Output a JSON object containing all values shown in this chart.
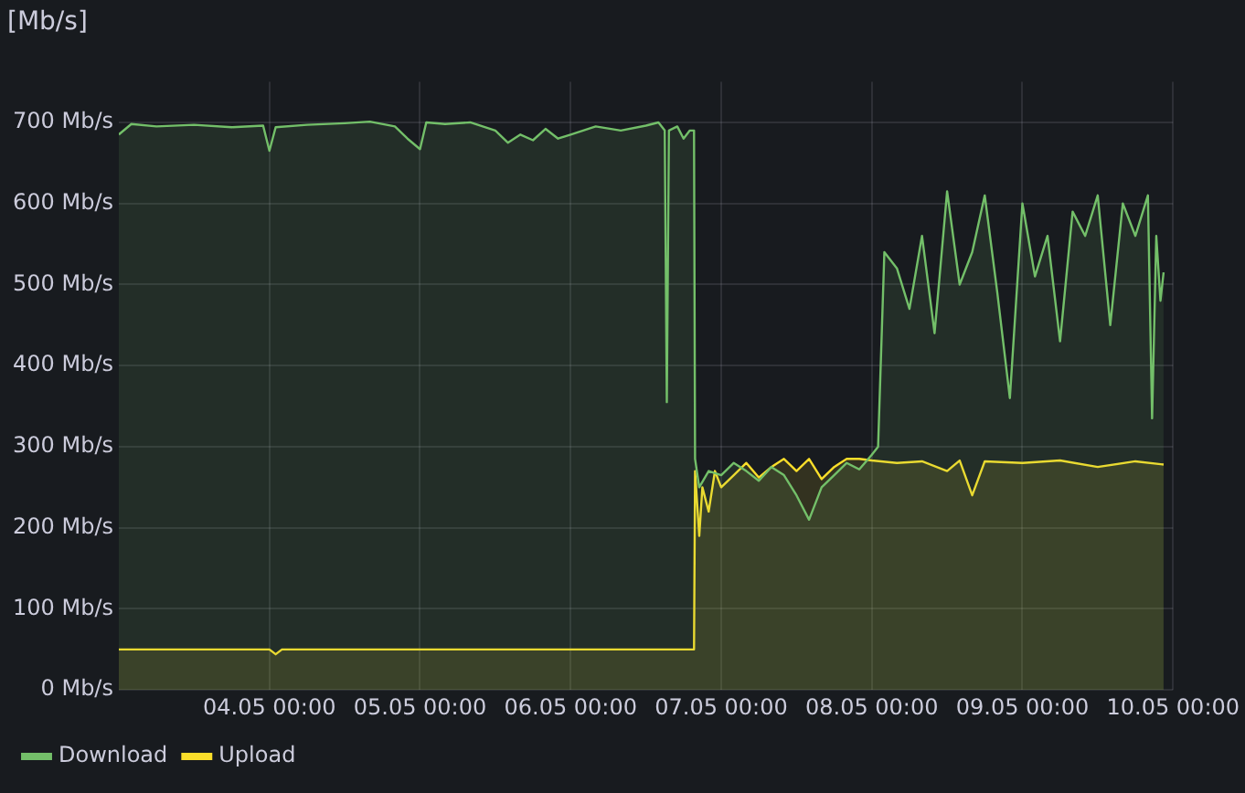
{
  "chart_data": {
    "type": "area",
    "title": "[Mb/s]",
    "legend": "bottom",
    "grid": true,
    "xlim": [
      "--05-03T00:00",
      "--05-10T00:00"
    ],
    "xticks": [
      {
        "value": "--05-04T00:00",
        "label": "04.05 00:00"
      },
      {
        "value": "--05-05T00:00",
        "label": "05.05 00:00"
      },
      {
        "value": "--05-06T00:00",
        "label": "06.05 00:00"
      },
      {
        "value": "--05-07T00:00",
        "label": "07.05 00:00"
      },
      {
        "value": "--05-08T00:00",
        "label": "08.05 00:00"
      },
      {
        "value": "--05-09T00:00",
        "label": "09.05 00:00"
      },
      {
        "value": "--05-10T00:00",
        "label": "10.05 00:00"
      }
    ],
    "ylim": [
      0,
      750
    ],
    "yticks": [
      {
        "value": 0,
        "label": "0 Mb/s"
      },
      {
        "value": 100,
        "label": "100 Mb/s"
      },
      {
        "value": 200,
        "label": "200 Mb/s"
      },
      {
        "value": 300,
        "label": "300 Mb/s"
      },
      {
        "value": 400,
        "label": "400 Mb/s"
      },
      {
        "value": 500,
        "label": "500 Mb/s"
      },
      {
        "value": 600,
        "label": "600 Mb/s"
      },
      {
        "value": 700,
        "label": "700 Mb/s"
      }
    ],
    "series": [
      {
        "name": "Download",
        "color": "#73bf69",
        "x": [
          "--05-03T00:00",
          "--05-03T02:00",
          "--05-03T06:00",
          "--05-03T12:00",
          "--05-03T18:00",
          "--05-03T23:00",
          "--05-04T00:00",
          "--05-04T01:00",
          "--05-04T06:00",
          "--05-04T12:00",
          "--05-04T16:00",
          "--05-04T20:00",
          "--05-04T22:00",
          "--05-05T00:00",
          "--05-05T01:00",
          "--05-05T04:00",
          "--05-05T08:00",
          "--05-05T12:00",
          "--05-05T14:00",
          "--05-05T16:00",
          "--05-05T18:00",
          "--05-05T20:00",
          "--05-05T22:00",
          "--05-06T00:00",
          "--05-06T04:00",
          "--05-06T08:00",
          "--05-06T12:00",
          "--05-06T14:00",
          "--05-06T15:00",
          "--05-06T15:20",
          "--05-06T15:40",
          "--05-06T17:00",
          "--05-06T18:00",
          "--05-06T19:00",
          "--05-06T19:40",
          "--05-06T19:50",
          "--05-06T20:30",
          "--05-06T22:00",
          "--05-07T00:00",
          "--05-07T02:00",
          "--05-07T04:00",
          "--05-07T06:00",
          "--05-07T08:00",
          "--05-07T10:00",
          "--05-07T12:00",
          "--05-07T14:00",
          "--05-07T16:00",
          "--05-07T18:00",
          "--05-07T20:00",
          "--05-07T22:00",
          "--05-08T00:00",
          "--05-08T01:00",
          "--05-08T02:00",
          "--05-08T04:00",
          "--05-08T06:00",
          "--05-08T08:00",
          "--05-08T10:00",
          "--05-08T12:00",
          "--05-08T14:00",
          "--05-08T16:00",
          "--05-08T18:00",
          "--05-08T20:00",
          "--05-08T22:00",
          "--05-09T00:00",
          "--05-09T02:00",
          "--05-09T04:00",
          "--05-09T06:00",
          "--05-09T08:00",
          "--05-09T10:00",
          "--05-09T12:00",
          "--05-09T14:00",
          "--05-09T16:00",
          "--05-09T18:00",
          "--05-09T20:00",
          "--05-09T20:40",
          "--05-09T21:20",
          "--05-09T22:00",
          "--05-09T22:30"
        ],
        "values": [
          685,
          698,
          695,
          697,
          694,
          696,
          665,
          694,
          697,
          699,
          701,
          695,
          680,
          667,
          700,
          698,
          700,
          690,
          675,
          685,
          678,
          692,
          680,
          685,
          695,
          690,
          696,
          700,
          690,
          355,
          690,
          695,
          680,
          690,
          690,
          285,
          250,
          270,
          265,
          280,
          270,
          258,
          275,
          265,
          240,
          210,
          250,
          265,
          280,
          272,
          290,
          300,
          540,
          520,
          470,
          560,
          440,
          615,
          500,
          540,
          610,
          490,
          360,
          600,
          510,
          560,
          430,
          590,
          560,
          610,
          450,
          600,
          560,
          610,
          335,
          560,
          480,
          515
        ]
      },
      {
        "name": "Upload",
        "color": "#fade2a",
        "x": [
          "--05-03T00:00",
          "--05-04T00:00",
          "--05-04T01:00",
          "--05-04T02:00",
          "--05-06T19:40",
          "--05-06T19:50",
          "--05-06T20:30",
          "--05-06T21:00",
          "--05-06T22:00",
          "--05-06T23:00",
          "--05-07T00:00",
          "--05-07T02:00",
          "--05-07T04:00",
          "--05-07T06:00",
          "--05-07T08:00",
          "--05-07T10:00",
          "--05-07T12:00",
          "--05-07T14:00",
          "--05-07T16:00",
          "--05-07T18:00",
          "--05-07T20:00",
          "--05-07T22:00",
          "--05-08T00:00",
          "--05-08T04:00",
          "--05-08T08:00",
          "--05-08T12:00",
          "--05-08T14:00",
          "--05-08T16:00",
          "--05-08T18:00",
          "--05-09T00:00",
          "--05-09T06:00",
          "--05-09T12:00",
          "--05-09T18:00",
          "--05-09T22:30"
        ],
        "values": [
          50,
          50,
          44,
          50,
          50,
          270,
          190,
          250,
          220,
          270,
          250,
          265,
          280,
          262,
          275,
          285,
          270,
          285,
          260,
          275,
          285,
          285,
          283,
          280,
          282,
          270,
          283,
          240,
          282,
          280,
          283,
          275,
          282,
          278
        ]
      }
    ]
  }
}
